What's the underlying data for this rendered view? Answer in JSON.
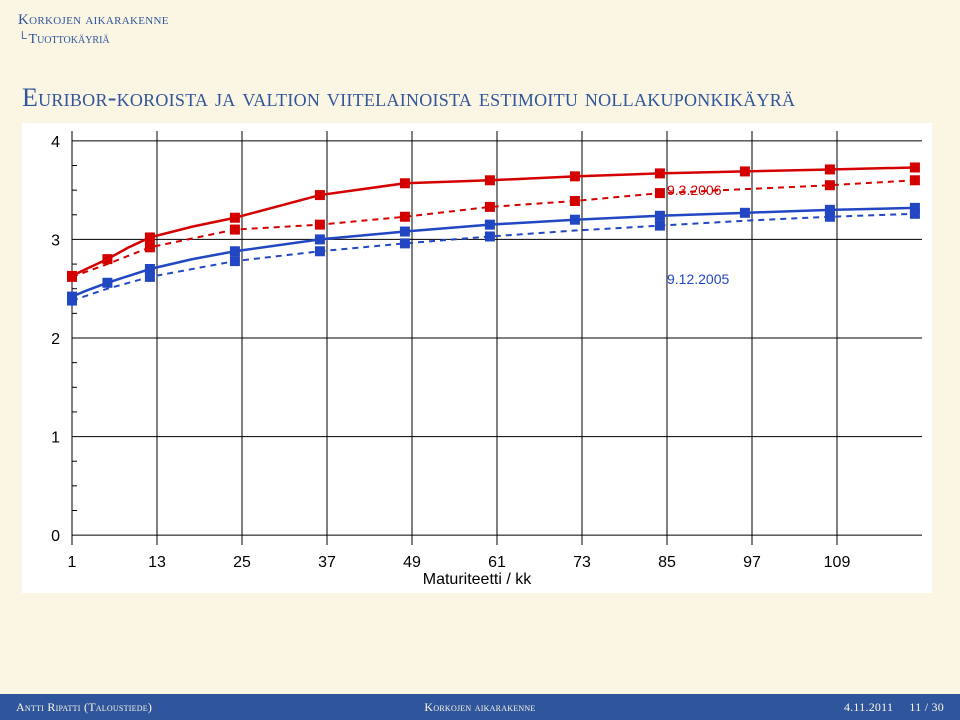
{
  "breadcrumb": {
    "top": "Korkojen aikarakenne",
    "sub": "Tuottokäyriä"
  },
  "title": "Euribor-koroista ja valtion viitelainoista estimoitu nollakuponkikäyrä",
  "chart": {
    "type": "line-scatter",
    "background_color": "#ffffff",
    "grid_color": "#000000",
    "grid_linewidth": 1,
    "xlabel": "Maturiteetti / kk",
    "xticks": [
      1,
      13,
      25,
      37,
      49,
      61,
      73,
      85,
      97,
      109
    ],
    "xlim": [
      1,
      121
    ],
    "yticks": [
      0,
      1,
      2,
      3,
      4
    ],
    "ylim": [
      -0.1,
      4.1
    ],
    "tick_fontsize": 16,
    "label_fontsize": 16,
    "series": [
      {
        "id": "red_solid",
        "label": "9.3.2006",
        "label_color": "#d40000",
        "legend_x": 85,
        "legend_y": 3.45,
        "color": "#d40000",
        "dash": "none",
        "linewidth": 2.5,
        "markers": true,
        "marker_size": 9,
        "data": [
          [
            1,
            2.63
          ],
          [
            3,
            2.7
          ],
          [
            6,
            2.8
          ],
          [
            9,
            2.92
          ],
          [
            12,
            3.02
          ],
          [
            18,
            3.13
          ],
          [
            24,
            3.22
          ],
          [
            36,
            3.45
          ],
          [
            48,
            3.57
          ],
          [
            60,
            3.6
          ],
          [
            72,
            3.64
          ],
          [
            84,
            3.67
          ],
          [
            96,
            3.69
          ],
          [
            108,
            3.71
          ],
          [
            120,
            3.73
          ]
        ],
        "marker_x": [
          1,
          6,
          12,
          24,
          36,
          48,
          60,
          72,
          84,
          96,
          108,
          120
        ]
      },
      {
        "id": "red_dashed",
        "color": "#d40000",
        "dash": "6,5",
        "linewidth": 2,
        "markers": true,
        "marker_size": 9,
        "data": [
          [
            1,
            2.62
          ],
          [
            6,
            2.75
          ],
          [
            12,
            2.92
          ],
          [
            24,
            3.1
          ],
          [
            36,
            3.15
          ],
          [
            48,
            3.23
          ],
          [
            60,
            3.33
          ],
          [
            72,
            3.39
          ],
          [
            84,
            3.47
          ],
          [
            96,
            3.51
          ],
          [
            108,
            3.55
          ],
          [
            120,
            3.6
          ]
        ],
        "marker_x": [
          1,
          12,
          24,
          36,
          48,
          60,
          72,
          84,
          108,
          120
        ]
      },
      {
        "id": "blue_solid",
        "label": "9.12.2005",
        "label_color": "#2247c3",
        "legend_x": 85,
        "legend_y": 2.55,
        "color": "#2247c3",
        "dash": "none",
        "linewidth": 2.5,
        "markers": true,
        "marker_size": 9,
        "data": [
          [
            1,
            2.42
          ],
          [
            3,
            2.48
          ],
          [
            6,
            2.56
          ],
          [
            9,
            2.63
          ],
          [
            12,
            2.7
          ],
          [
            18,
            2.8
          ],
          [
            24,
            2.88
          ],
          [
            36,
            3.0
          ],
          [
            48,
            3.08
          ],
          [
            60,
            3.15
          ],
          [
            72,
            3.2
          ],
          [
            84,
            3.24
          ],
          [
            96,
            3.27
          ],
          [
            108,
            3.3
          ],
          [
            120,
            3.32
          ]
        ],
        "marker_x": [
          1,
          6,
          12,
          24,
          36,
          48,
          60,
          72,
          84,
          96,
          108,
          120
        ]
      },
      {
        "id": "blue_dashed",
        "color": "#2247c3",
        "dash": "6,5",
        "linewidth": 2,
        "markers": true,
        "marker_size": 9,
        "data": [
          [
            1,
            2.38
          ],
          [
            6,
            2.5
          ],
          [
            12,
            2.62
          ],
          [
            24,
            2.78
          ],
          [
            36,
            2.88
          ],
          [
            48,
            2.96
          ],
          [
            60,
            3.03
          ],
          [
            72,
            3.09
          ],
          [
            84,
            3.14
          ],
          [
            96,
            3.19
          ],
          [
            108,
            3.23
          ],
          [
            120,
            3.26
          ]
        ],
        "marker_x": [
          1,
          12,
          24,
          36,
          48,
          60,
          84,
          108,
          120
        ]
      }
    ]
  },
  "footer": {
    "left": "Antti Ripatti (Taloustiede)",
    "center": "Korkojen aikarakenne",
    "right_date": "4.11.2011",
    "right_page": "11 / 30"
  }
}
